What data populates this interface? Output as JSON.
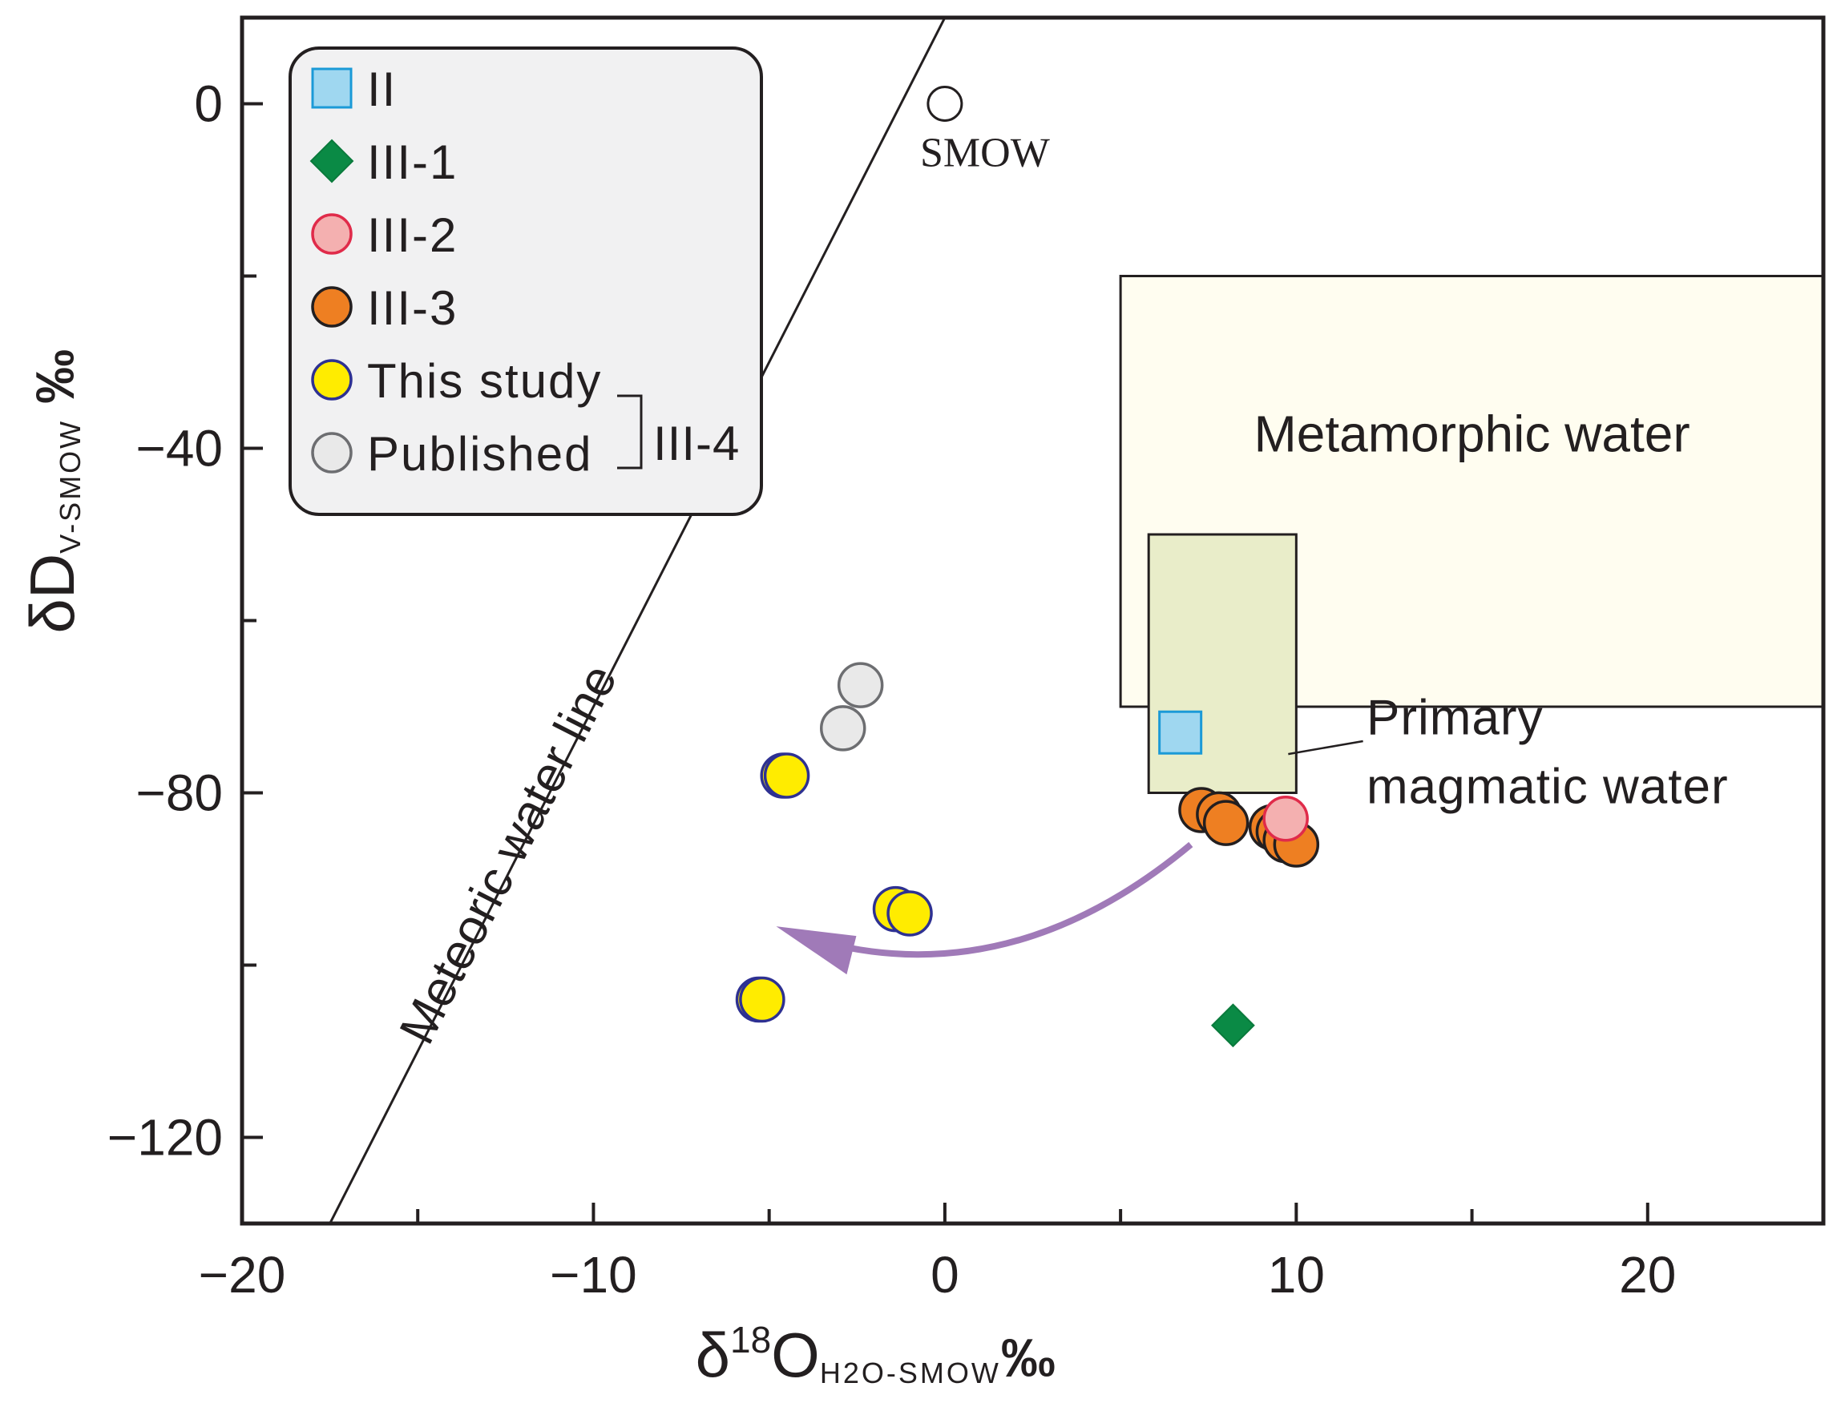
{
  "chart_data": {
    "type": "scatter",
    "xlabel": {
      "main": "δ",
      "sup": "18",
      "letter": "O",
      "sub": "H2O-SMOW",
      "unit": "‰"
    },
    "ylabel": {
      "main": "δD",
      "sub": "V-SMOW",
      "unit": "‰"
    },
    "xlim": [
      -20,
      25
    ],
    "ylim": [
      -130,
      10
    ],
    "xticks": [
      -20,
      -10,
      0,
      10,
      20
    ],
    "xtick_labels": [
      "−20",
      "−10",
      "0",
      "10",
      "20"
    ],
    "yticks": [
      0,
      -40,
      -80,
      -120
    ],
    "ytick_labels": [
      "0",
      "−40",
      "−80",
      "−120"
    ],
    "meteoric_water_line": {
      "label": "Meteoric water line",
      "slope": 8,
      "intercept": 10
    },
    "smow": {
      "label": "SMOW",
      "x": 0,
      "y": 0
    },
    "regions": [
      {
        "name": "Metamorphic water",
        "x": [
          5,
          25
        ],
        "y": [
          -70,
          -20
        ],
        "color": "#fffdf0"
      },
      {
        "name": "Primary magmatic water",
        "label_lines": [
          "Primary",
          "magmatic water"
        ],
        "x": [
          5.8,
          10
        ],
        "y": [
          -80,
          -50
        ],
        "color": "#e9edc9"
      }
    ],
    "series": [
      {
        "name": "II",
        "marker": "square",
        "fill": "#9fd7f0",
        "stroke": "#1b9ad7",
        "points": [
          [
            6.7,
            -73
          ]
        ]
      },
      {
        "name": "III-1",
        "marker": "diamond",
        "fill": "#0a8a45",
        "stroke": "#0a7a3c",
        "points": [
          [
            8.2,
            -107
          ]
        ]
      },
      {
        "name": "III-3",
        "marker": "circle",
        "fill": "#ee7f22",
        "stroke": "#231f20",
        "points": [
          [
            7.3,
            -82
          ],
          [
            7.8,
            -82.5
          ],
          [
            8,
            -83.5
          ],
          [
            9.3,
            -84
          ],
          [
            9.5,
            -84.5
          ],
          [
            9.7,
            -85.5
          ],
          [
            10,
            -86
          ]
        ]
      },
      {
        "name": "III-2",
        "marker": "circle",
        "fill": "#f4b0b0",
        "stroke": "#e02b4a",
        "points": [
          [
            9.7,
            -83
          ]
        ]
      },
      {
        "name": "Published",
        "marker": "circle",
        "fill": "#e9e9e9",
        "stroke": "#6d6e71",
        "points": [
          [
            -2.4,
            -67.5
          ],
          [
            -2.9,
            -72.5
          ]
        ]
      },
      {
        "name": "This study",
        "marker": "circle",
        "fill": "#ffec00",
        "stroke": "#2e3192",
        "points": [
          [
            -4.6,
            -78
          ],
          [
            -4.5,
            -78
          ],
          [
            -1.4,
            -93.5
          ],
          [
            -1,
            -94
          ],
          [
            -5.3,
            -104
          ],
          [
            -5.2,
            -104
          ]
        ]
      }
    ],
    "legend": {
      "position": "top-left",
      "entries": [
        {
          "label": "II",
          "marker": "square",
          "fill": "#9fd7f0",
          "stroke": "#1b9ad7"
        },
        {
          "label": "III-1",
          "marker": "diamond",
          "fill": "#0a8a45",
          "stroke": "#0a7a3c"
        },
        {
          "label": "III-2",
          "marker": "circle",
          "fill": "#f4b0b0",
          "stroke": "#e02b4a"
        },
        {
          "label": "III-3",
          "marker": "circle",
          "fill": "#ee7f22",
          "stroke": "#231f20"
        },
        {
          "label": "This study",
          "marker": "circle",
          "fill": "#ffec00",
          "stroke": "#2e3192"
        },
        {
          "label": "Published",
          "marker": "circle",
          "fill": "#e9e9e9",
          "stroke": "#6d6e71"
        }
      ],
      "group_label": "III-4"
    },
    "arrow": {
      "color": "#a07ab8",
      "from": [
        7,
        -86
      ],
      "to": [
        -4.8,
        -95.5
      ],
      "meaning": "trend from magmatic to meteoric"
    }
  }
}
